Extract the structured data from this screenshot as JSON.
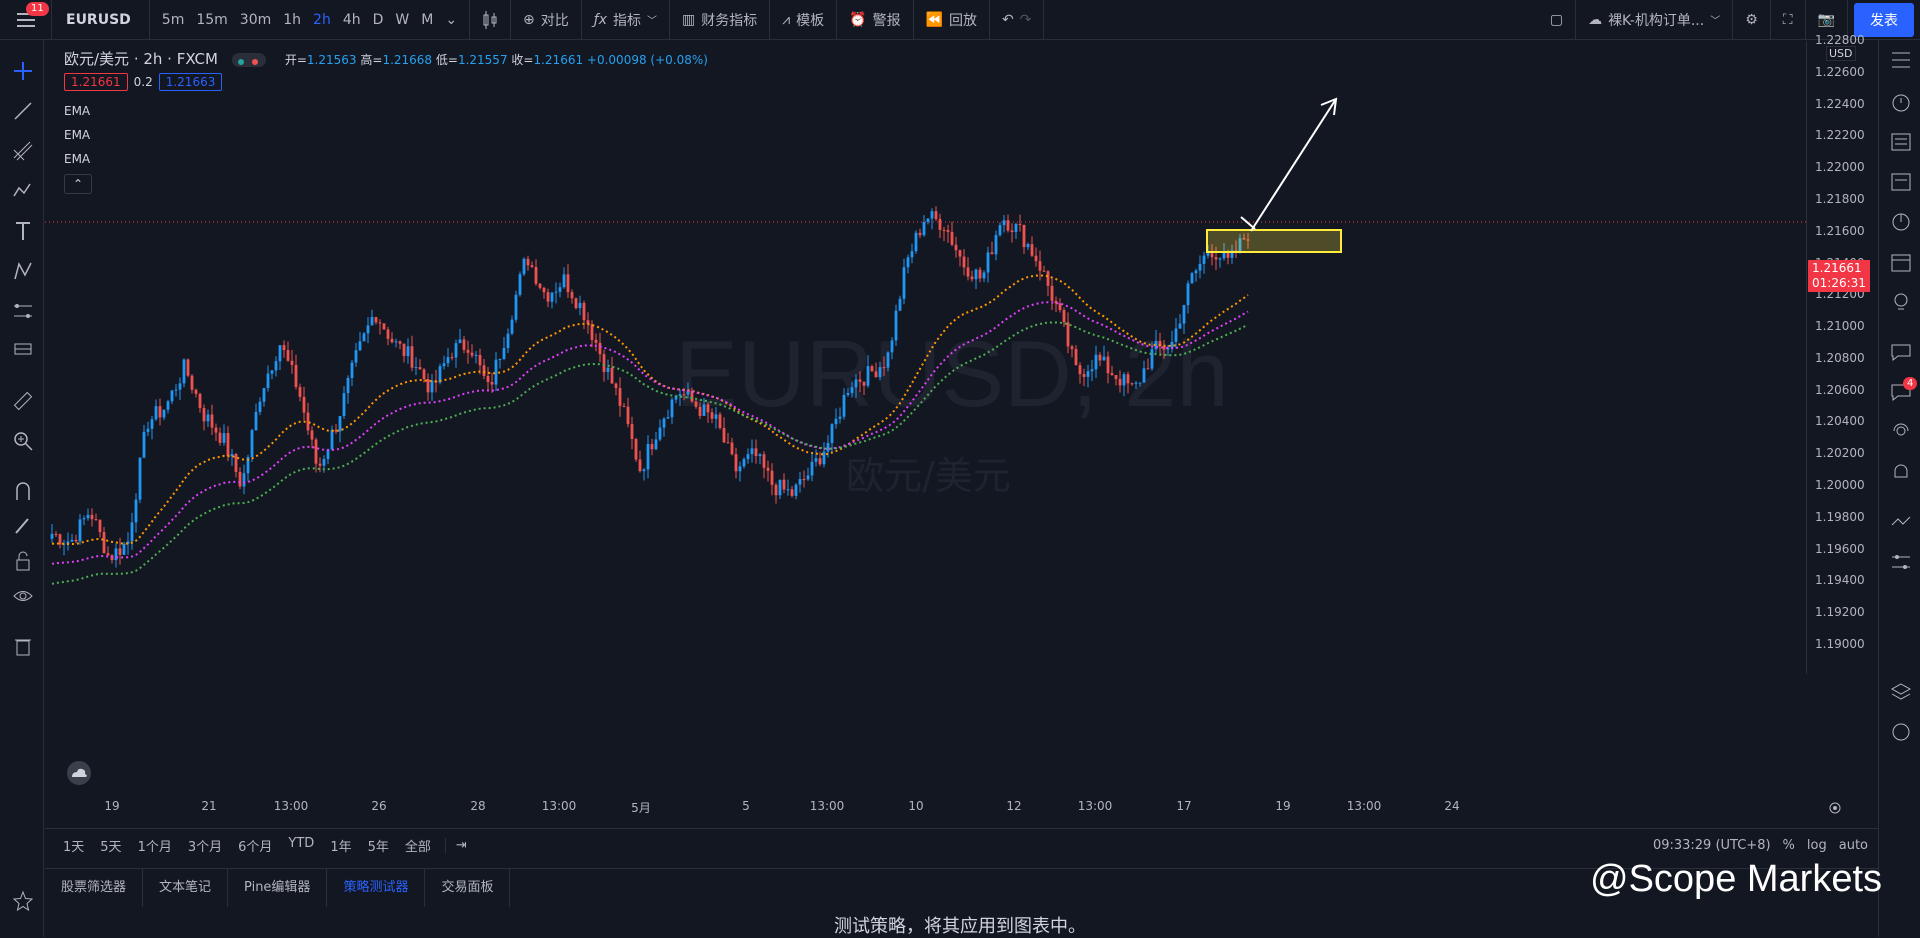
{
  "topbar": {
    "badge": "11",
    "symbol": "EURUSD",
    "intervals": [
      "5m",
      "15m",
      "30m",
      "1h",
      "2h",
      "4h",
      "D",
      "W",
      "M"
    ],
    "active_interval": "2h",
    "compare": "对比",
    "indicators": "指标",
    "financials": "财务指标",
    "templates": "模板",
    "alerts": "警报",
    "replay": "回放",
    "layout_name": "裸K-机构订单...",
    "publish": "发表"
  },
  "legend": {
    "title": "欧元/美元 · 2h · FXCM",
    "open_label": "开=",
    "open": "1.21563",
    "high_label": "高=",
    "high": "1.21668",
    "low_label": "低=",
    "low": "1.21557",
    "close_label": "收=",
    "close": "1.21661",
    "change": "+0.00098 (+0.08%)",
    "sell_price": "1.21661",
    "spread": "0.2",
    "buy_price": "1.21663",
    "ema1": "EMA",
    "ema2": "EMA",
    "ema3": "EMA",
    "collapse": "⌃"
  },
  "watermark": {
    "symbol": "EURUSD, 2h",
    "name": "欧元/美元"
  },
  "price_scale": {
    "currency": "USD",
    "ticks": [
      "1.22800",
      "1.22600",
      "1.22400",
      "1.22200",
      "1.22000",
      "1.21800",
      "1.21600",
      "1.21400",
      "1.21200",
      "1.21000",
      "1.20800",
      "1.20600",
      "1.20400",
      "1.20200",
      "1.20000",
      "1.19800",
      "1.19600",
      "1.19400",
      "1.19200",
      "1.19000"
    ],
    "current_price": "1.21661",
    "countdown": "01:26:31"
  },
  "time_scale": {
    "ticks": [
      "19",
      "21",
      "13:00",
      "26",
      "28",
      "13:00",
      "5月",
      "5",
      "13:00",
      "10",
      "12",
      "13:00",
      "17",
      "19",
      "13:00",
      "24"
    ]
  },
  "bottombar": {
    "ranges": [
      "1天",
      "5天",
      "1个月",
      "3个月",
      "6个月",
      "YTD",
      "1年",
      "5年",
      "全部"
    ],
    "clock": "09:33:29 (UTC+8)",
    "percent": "%",
    "log": "log",
    "auto": "auto"
  },
  "tabs": [
    "股票筛选器",
    "文本笔记",
    "Pine编辑器",
    "策略测试器",
    "交易面板"
  ],
  "active_tab": "策略测试器",
  "panel_message": "测试策略，将其应用到图表中。",
  "social_watermark": "@Scope Markets",
  "right_badge": "4",
  "colors": {
    "up": "#2196f3",
    "down": "#ef5350",
    "ema_fast": "#ff9800",
    "ema_mid": "#e040fb",
    "ema_slow": "#4caf50",
    "accent": "#2962ff",
    "highlight": "#ffeb3b"
  },
  "chart_data": {
    "type": "candlestick",
    "symbol": "EURUSD",
    "timeframe": "2h",
    "ylim": [
      1.19,
      1.2285
    ],
    "close_path": [
      1.197,
      1.1965,
      1.1985,
      1.1955,
      1.1965,
      1.204,
      1.205,
      1.2075,
      1.2045,
      1.203,
      1.2,
      1.206,
      1.209,
      1.206,
      1.201,
      1.204,
      1.208,
      1.211,
      1.209,
      1.208,
      1.206,
      1.2085,
      1.209,
      1.206,
      1.21,
      1.2145,
      1.212,
      1.213,
      1.211,
      1.208,
      1.205,
      1.201,
      1.204,
      1.206,
      1.205,
      1.204,
      1.201,
      1.202,
      1.2,
      1.1995,
      1.201,
      1.203,
      1.2065,
      1.207,
      1.208,
      1.214,
      1.217,
      1.2165,
      1.214,
      1.213,
      1.217,
      1.216,
      1.214,
      1.211,
      1.207,
      1.208,
      1.207,
      1.206,
      1.2085,
      1.209,
      1.213,
      1.215,
      1.214,
      1.216
    ],
    "ema_fast_end": 1.2122,
    "ema_mid_end": 1.2113,
    "ema_slow_end": 1.2105
  }
}
